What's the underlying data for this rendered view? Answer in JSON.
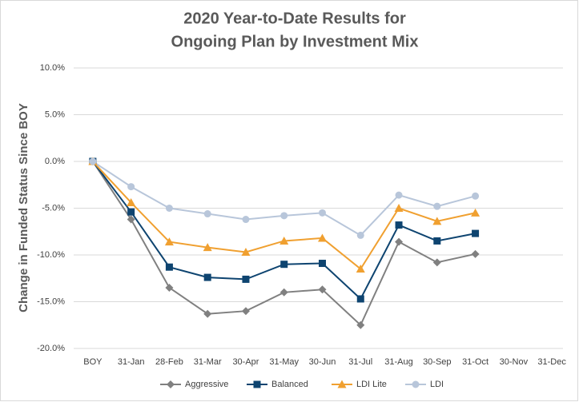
{
  "chart_data": {
    "type": "line",
    "title": [
      "2020 Year-to-Date Results for",
      "Ongoing Plan by Investment Mix"
    ],
    "y_label": "Change in Funded Status Since BOY",
    "categories": [
      "BOY",
      "31-Jan",
      "28-Feb",
      "31-Mar",
      "30-Apr",
      "31-May",
      "30-Jun",
      "31-Jul",
      "31-Aug",
      "30-Sep",
      "31-Oct",
      "30-Nov",
      "31-Dec"
    ],
    "series": [
      {
        "name": "Aggressive",
        "color": "#808080",
        "marker": "diamond",
        "values": [
          0,
          -6.2,
          -13.5,
          -16.3,
          -16.0,
          -14.0,
          -13.7,
          -17.5,
          -8.6,
          -10.8,
          -9.9,
          null,
          null
        ]
      },
      {
        "name": "Balanced",
        "color": "#0e4470",
        "marker": "square",
        "values": [
          0,
          -5.4,
          -11.3,
          -12.4,
          -12.6,
          -11.0,
          -10.9,
          -14.7,
          -6.8,
          -8.5,
          -7.7,
          null,
          null
        ]
      },
      {
        "name": "LDI Lite",
        "color": "#f0a030",
        "marker": "triangle",
        "values": [
          0,
          -4.4,
          -8.6,
          -9.2,
          -9.7,
          -8.5,
          -8.2,
          -11.5,
          -5.0,
          -6.4,
          -5.5,
          null,
          null
        ]
      },
      {
        "name": "LDI",
        "color": "#b8c6da",
        "marker": "circle",
        "values": [
          0,
          -2.7,
          -5.0,
          -5.6,
          -6.2,
          -5.8,
          -5.5,
          -7.9,
          -3.6,
          -4.8,
          -3.7,
          null,
          null
        ]
      }
    ],
    "ylim": [
      -20,
      10
    ],
    "yticks": [
      {
        "value": 10,
        "label": "10.0%"
      },
      {
        "value": 5,
        "label": "5.0%"
      },
      {
        "value": 0,
        "label": "0.0%"
      },
      {
        "value": -5,
        "label": "-5.0%"
      },
      {
        "value": -10,
        "label": "-10.0%"
      },
      {
        "value": -15,
        "label": "-15.0%"
      },
      {
        "value": -20,
        "label": "-20.0%"
      }
    ],
    "grid": true,
    "legend": "bottom"
  }
}
